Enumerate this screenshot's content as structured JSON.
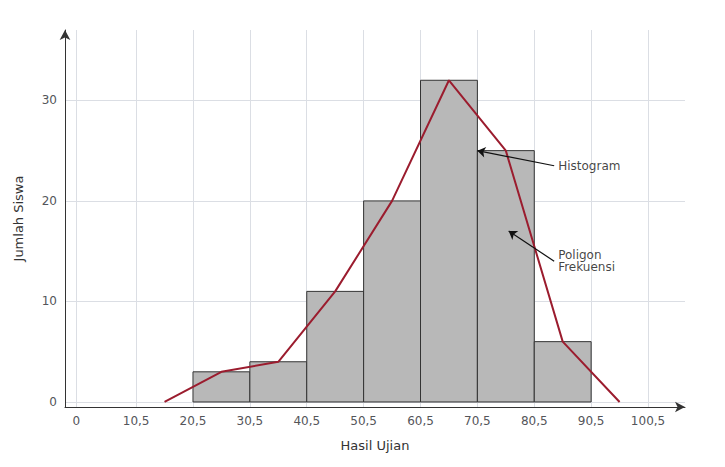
{
  "chart_data": {
    "type": "histogram",
    "xlabel": "Hasil Ujian",
    "ylabel": "Jumlah Siswa",
    "bins": [
      20.5,
      30.5,
      40.5,
      50.5,
      60.5,
      70.5,
      80.5,
      90.5
    ],
    "values": [
      3,
      4,
      11,
      20,
      32,
      25,
      6
    ],
    "color": "#b8b8b8",
    "polygon": {
      "type": "line",
      "x": [
        15.5,
        25.5,
        35.5,
        45.5,
        55.5,
        65.5,
        75.5,
        85.5,
        95.5
      ],
      "values": [
        0,
        3,
        4,
        11,
        20,
        32,
        25,
        6,
        0
      ],
      "color": "#9b1c2e"
    },
    "annotations": [
      {
        "text": "Histogram",
        "x": 84,
        "y": 23.5,
        "arrow_to": [
          70.5,
          25
        ]
      },
      {
        "text": "Poligon\nFrekuensi",
        "x": 84,
        "y": 14,
        "arrow_to": [
          76,
          17
        ]
      }
    ],
    "xlim": [
      -2,
      107
    ],
    "xticks": [
      0,
      {
        "value": 10.5,
        "label": "10,5"
      },
      {
        "value": 20.5,
        "label": "20,5"
      },
      {
        "value": 30.5,
        "label": "30,5"
      },
      {
        "value": 40.5,
        "label": "40,5"
      },
      {
        "value": 50.5,
        "label": "50,5"
      },
      {
        "value": 60.5,
        "label": "60,5"
      },
      {
        "value": 70.5,
        "label": "70,5"
      },
      {
        "value": 80.5,
        "label": "80,5"
      },
      {
        "value": 90.5,
        "label": "90,5"
      },
      {
        "value": 100.5,
        "label": "100,5"
      }
    ],
    "ylim": [
      -0.5,
      37
    ],
    "yticks": [
      0,
      10,
      20,
      30
    ],
    "grid": true
  }
}
